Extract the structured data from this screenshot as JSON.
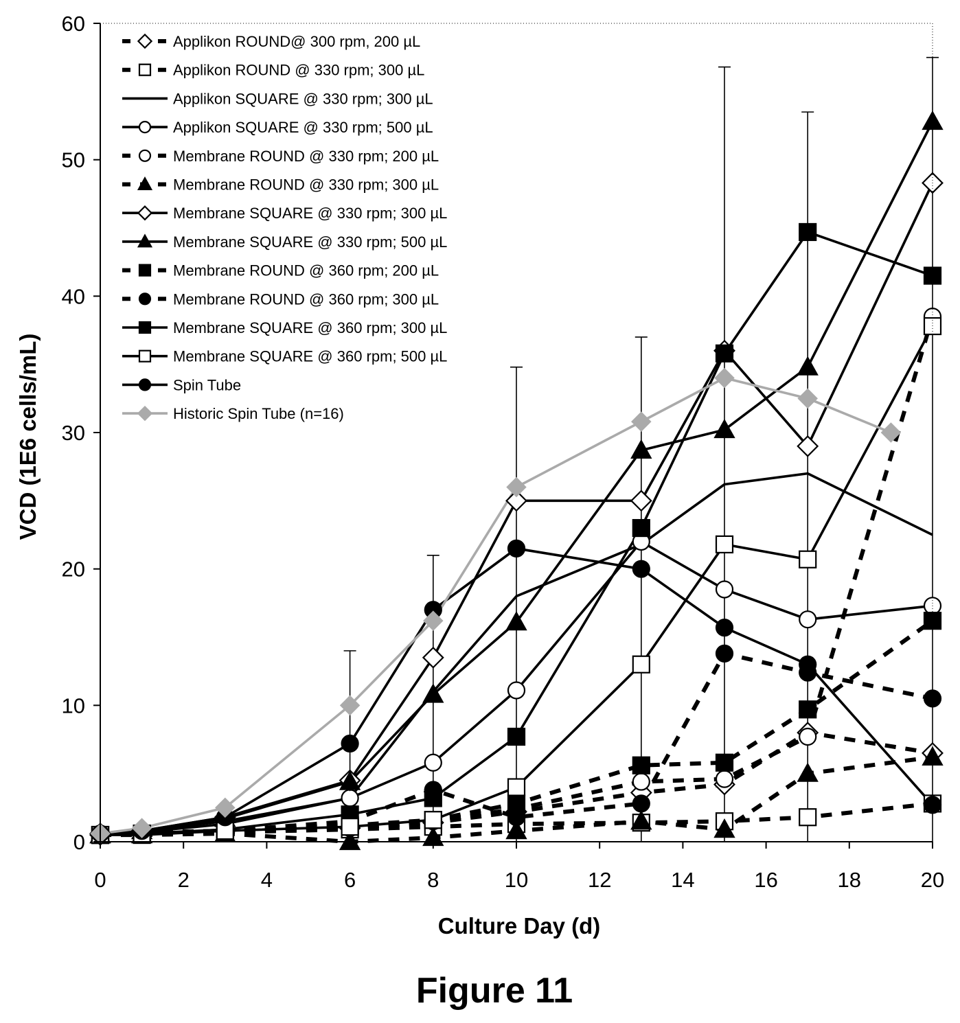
{
  "chart_data": {
    "type": "line",
    "title": "",
    "xlabel": "Culture Day (d)",
    "ylabel": "VCD (1E6 cells/mL)",
    "caption": "Figure 11",
    "xlim": [
      0,
      20
    ],
    "ylim": [
      0,
      60
    ],
    "xticks": [
      "0",
      "2",
      "4",
      "6",
      "8",
      "10",
      "12",
      "14",
      "16",
      "18",
      "20"
    ],
    "yticks": [
      "0",
      "10",
      "20",
      "30",
      "40",
      "50",
      "60"
    ],
    "grid": false,
    "legend_position": "top-left",
    "series": [
      {
        "name": "Applikon ROUND@ 300 rpm, 200 µL",
        "style": "dashed",
        "marker": "diamond",
        "fill": "open",
        "color": "#000000",
        "x": [
          0,
          1,
          3,
          6,
          8,
          10,
          13,
          15,
          17,
          20
        ],
        "y": [
          0.6,
          0.7,
          0.8,
          1.0,
          1.4,
          2.2,
          3.6,
          4.2,
          8.0,
          6.5
        ]
      },
      {
        "name": "Applikon ROUND @ 330 rpm; 300 µL",
        "style": "dashed",
        "marker": "square",
        "fill": "open",
        "color": "#000000",
        "x": [
          0,
          1,
          3,
          6,
          8,
          10,
          13,
          15,
          17,
          20
        ],
        "y": [
          0.5,
          0.6,
          0.7,
          0.9,
          1.1,
          1.3,
          1.4,
          1.5,
          1.8,
          2.8
        ]
      },
      {
        "name": "Applikon SQUARE @ 330 rpm; 300 µL",
        "style": "solid",
        "marker": "none",
        "fill": "none",
        "color": "#000000",
        "x": [
          0,
          1,
          3,
          6,
          8,
          10,
          13,
          15,
          17,
          20
        ],
        "y": [
          0.5,
          0.8,
          1.5,
          3.2,
          11.0,
          18.0,
          21.8,
          26.2,
          27.0,
          22.5
        ]
      },
      {
        "name": "Applikon SQUARE @ 330 rpm; 500 µL",
        "style": "solid",
        "marker": "circle",
        "fill": "open",
        "color": "#000000",
        "x": [
          0,
          1,
          3,
          6,
          8,
          10,
          13,
          15,
          17,
          20
        ],
        "y": [
          0.5,
          0.7,
          1.3,
          3.2,
          5.8,
          11.1,
          22.0,
          18.5,
          16.3,
          17.3
        ]
      },
      {
        "name": "Membrane ROUND @ 330 rpm; 200 µL",
        "style": "dashed",
        "marker": "circle",
        "fill": "open",
        "color": "#000000",
        "x": [
          0,
          1,
          3,
          6,
          8,
          10,
          13,
          15,
          17,
          20
        ],
        "y": [
          0.5,
          0.6,
          0.8,
          1.0,
          1.5,
          2.4,
          4.4,
          4.6,
          7.7,
          38.5
        ]
      },
      {
        "name": "Membrane ROUND @ 330 rpm; 300 µL",
        "style": "dashed",
        "marker": "triangle",
        "fill": "filled",
        "color": "#000000",
        "x": [
          0,
          1,
          3,
          6,
          8,
          10,
          13,
          15,
          17,
          20
        ],
        "y": [
          0.5,
          0.5,
          0.6,
          0.0,
          0.3,
          0.8,
          1.5,
          0.9,
          5.0,
          6.2
        ]
      },
      {
        "name": "Membrane SQUARE @ 330 rpm; 300 µL",
        "style": "solid",
        "marker": "diamond",
        "fill": "open",
        "color": "#000000",
        "x": [
          0,
          1,
          3,
          6,
          8,
          10,
          13,
          15,
          17,
          20
        ],
        "y": [
          0.5,
          0.8,
          1.8,
          4.5,
          13.5,
          25.0,
          25.0,
          36.0,
          29.0,
          48.3
        ]
      },
      {
        "name": "Membrane SQUARE @ 330 rpm; 500 µL",
        "style": "solid",
        "marker": "triangle",
        "fill": "filled",
        "color": "#000000",
        "x": [
          0,
          1,
          3,
          6,
          8,
          10,
          13,
          15,
          17,
          20
        ],
        "y": [
          0.5,
          0.8,
          1.7,
          4.4,
          10.8,
          16.1,
          28.7,
          30.2,
          34.8,
          52.8
        ]
      },
      {
        "name": "Membrane ROUND @ 360 rpm; 200 µL",
        "style": "dashed",
        "marker": "square",
        "fill": "filled",
        "color": "#000000",
        "x": [
          0,
          1,
          3,
          6,
          8,
          10,
          13,
          15,
          17,
          20
        ],
        "y": [
          0.5,
          0.6,
          0.7,
          1.2,
          1.6,
          2.8,
          5.6,
          5.8,
          9.7,
          16.2
        ]
      },
      {
        "name": "Membrane ROUND @ 360 rpm; 300 µL",
        "style": "dashed",
        "marker": "circle",
        "fill": "filled",
        "color": "#000000",
        "x": [
          0,
          1,
          3,
          6,
          8,
          10,
          13,
          15,
          17,
          20
        ],
        "y": [
          0.5,
          0.6,
          0.8,
          1.5,
          3.8,
          1.8,
          2.8,
          13.8,
          12.4,
          10.5
        ]
      },
      {
        "name": "Membrane SQUARE @ 360 rpm; 300 µL",
        "style": "solid",
        "marker": "square",
        "fill": "filled",
        "color": "#000000",
        "x": [
          0,
          1,
          3,
          6,
          8,
          10,
          13,
          15,
          17,
          20
        ],
        "y": [
          0.5,
          0.6,
          0.9,
          2.0,
          3.2,
          7.7,
          23.0,
          35.8,
          44.7,
          41.5
        ]
      },
      {
        "name": "Membrane SQUARE @ 360 rpm; 500 µL",
        "style": "solid",
        "marker": "square",
        "fill": "open",
        "color": "#000000",
        "x": [
          0,
          1,
          3,
          6,
          8,
          10,
          13,
          15,
          17,
          20
        ],
        "y": [
          0.5,
          0.5,
          0.8,
          1.1,
          1.6,
          4.0,
          13.0,
          21.8,
          20.7,
          37.8
        ]
      },
      {
        "name": "Spin Tube",
        "style": "solid",
        "marker": "circle",
        "fill": "filled",
        "color": "#000000",
        "x": [
          0,
          1,
          3,
          6,
          8,
          10,
          13,
          15,
          17,
          20
        ],
        "y": [
          0.6,
          0.8,
          1.8,
          7.2,
          17.0,
          21.5,
          20.0,
          15.7,
          13.0,
          2.7
        ]
      },
      {
        "name": "Historic Spin Tube (n=16)",
        "style": "solid",
        "marker": "diamond",
        "fill": "filled",
        "color": "#aaaaaa",
        "x": [
          0,
          1,
          3,
          6,
          8,
          10,
          13,
          15,
          17,
          19
        ],
        "y": [
          0.6,
          1.0,
          2.5,
          10.0,
          16.2,
          26.0,
          30.8,
          34.0,
          32.5,
          30.0
        ]
      }
    ],
    "error_bars": [
      {
        "x": 6,
        "low": 3.0,
        "high": 14.0
      },
      {
        "x": 8,
        "low": 0.0,
        "high": 21.0
      },
      {
        "x": 10,
        "low": 0.0,
        "high": 34.8
      },
      {
        "x": 13,
        "low": 0.0,
        "high": 37.0
      },
      {
        "x": 15,
        "low": 0.0,
        "high": 56.8
      },
      {
        "x": 17,
        "low": 0.0,
        "high": 53.5
      },
      {
        "x": 20,
        "low": 0.0,
        "high": 57.5
      }
    ]
  }
}
